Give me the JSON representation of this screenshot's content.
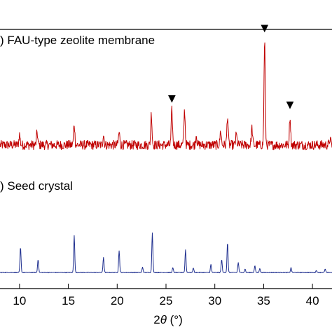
{
  "chart_data": {
    "type": "line",
    "xlabel": "2θ (°)",
    "xlabel_parts": {
      "prefix": "2",
      "symbol": "θ",
      "unit": " (°)"
    },
    "xlim": [
      8,
      42
    ],
    "x_ticks": [
      10,
      15,
      20,
      25,
      30,
      35,
      40
    ],
    "x_tick_labels": [
      "10",
      "15",
      "20",
      "25",
      "30",
      "35",
      "40"
    ],
    "yaxis_labels": "none",
    "grid": false,
    "marker_symbol": "▼",
    "series": [
      {
        "name": ") FAU-type zeolite membrane",
        "color": "#c00000",
        "baseline_intensity": 0.1,
        "noise": 0.045,
        "peaks": [
          {
            "x": 10.0,
            "intensity": 0.1
          },
          {
            "x": 11.8,
            "intensity": 0.12
          },
          {
            "x": 15.6,
            "intensity": 0.2
          },
          {
            "x": 18.6,
            "intensity": 0.1
          },
          {
            "x": 20.2,
            "intensity": 0.12
          },
          {
            "x": 23.5,
            "intensity": 0.3
          },
          {
            "x": 25.6,
            "intensity": 0.33
          },
          {
            "x": 26.9,
            "intensity": 0.33
          },
          {
            "x": 28.1,
            "intensity": 0.1
          },
          {
            "x": 30.6,
            "intensity": 0.14
          },
          {
            "x": 31.3,
            "intensity": 0.28
          },
          {
            "x": 32.2,
            "intensity": 0.1
          },
          {
            "x": 33.8,
            "intensity": 0.16
          },
          {
            "x": 35.1,
            "intensity": 1.0
          },
          {
            "x": 37.7,
            "intensity": 0.27
          },
          {
            "x": 41.8,
            "intensity": 0.06
          }
        ],
        "marked_peaks_x": [
          25.6,
          35.1,
          37.7
        ]
      },
      {
        "name": ") Seed crystal",
        "color": "#1f2f8f",
        "baseline_intensity": 0.0,
        "noise": 0.006,
        "peaks": [
          {
            "x": 10.1,
            "intensity": 0.38
          },
          {
            "x": 11.9,
            "intensity": 0.2
          },
          {
            "x": 15.6,
            "intensity": 0.56
          },
          {
            "x": 18.6,
            "intensity": 0.23
          },
          {
            "x": 20.2,
            "intensity": 0.33
          },
          {
            "x": 22.6,
            "intensity": 0.08
          },
          {
            "x": 23.6,
            "intensity": 0.6
          },
          {
            "x": 25.7,
            "intensity": 0.07
          },
          {
            "x": 27.0,
            "intensity": 0.34
          },
          {
            "x": 27.8,
            "intensity": 0.07
          },
          {
            "x": 29.6,
            "intensity": 0.12
          },
          {
            "x": 30.7,
            "intensity": 0.2
          },
          {
            "x": 31.3,
            "intensity": 0.45
          },
          {
            "x": 32.4,
            "intensity": 0.15
          },
          {
            "x": 33.1,
            "intensity": 0.05
          },
          {
            "x": 34.1,
            "intensity": 0.1
          },
          {
            "x": 34.6,
            "intensity": 0.06
          },
          {
            "x": 37.8,
            "intensity": 0.07
          },
          {
            "x": 40.4,
            "intensity": 0.03
          },
          {
            "x": 41.3,
            "intensity": 0.05
          }
        ],
        "marked_peaks_x": []
      }
    ]
  }
}
